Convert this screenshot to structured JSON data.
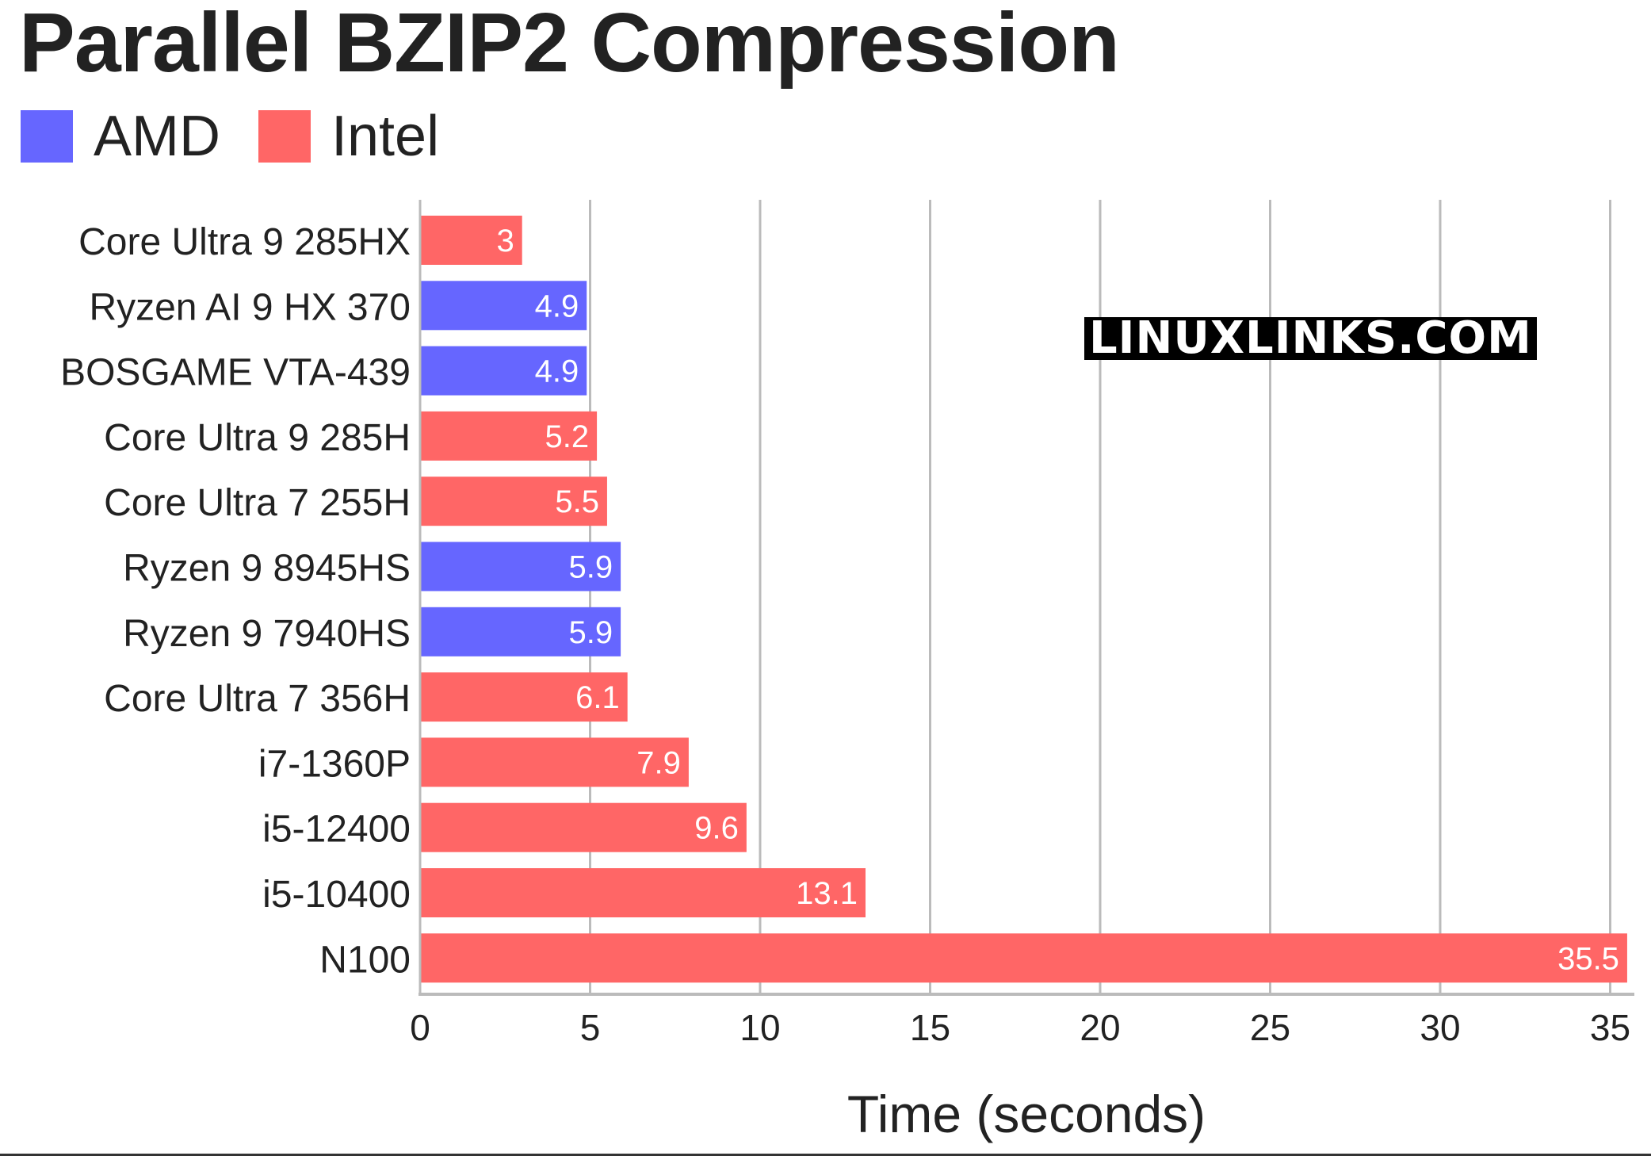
{
  "title": "Parallel BZIP2 Compression",
  "legend": [
    {
      "label": "AMD",
      "color": "#6666ff"
    },
    {
      "label": "Intel",
      "color": "#ff6666"
    }
  ],
  "watermark": "LINUXLINKS.COM",
  "chart_data": {
    "type": "bar",
    "orientation": "horizontal",
    "title": "Parallel BZIP2 Compression",
    "xlabel": "Time (seconds)",
    "ylabel": "",
    "xlim": [
      0,
      35.5
    ],
    "xticks": [
      0,
      5,
      10,
      15,
      20,
      25,
      30,
      35
    ],
    "grid": true,
    "legend_position": "top-left",
    "categories": [
      "Core Ultra 9 285HX",
      "Ryzen AI 9 HX 370",
      "BOSGAME VTA-439",
      "Core Ultra 9 285H",
      "Core Ultra 7 255H",
      "Ryzen 9 8945HS",
      "Ryzen 9 7940HS",
      "Core Ultra 7 356H",
      "i7-1360P",
      "i5-12400",
      "i5-10400",
      "N100"
    ],
    "values": [
      3,
      4.9,
      4.9,
      5.2,
      5.5,
      5.9,
      5.9,
      6.1,
      7.9,
      9.6,
      13.1,
      35.5
    ],
    "labels": [
      "3",
      "4.9",
      "4.9",
      "5.2",
      "5.5",
      "5.9",
      "5.9",
      "6.1",
      "7.9",
      "9.6",
      "13.1",
      "35.5"
    ],
    "vendor": [
      "Intel",
      "AMD",
      "AMD",
      "Intel",
      "Intel",
      "AMD",
      "AMD",
      "Intel",
      "Intel",
      "Intel",
      "Intel",
      "Intel"
    ],
    "colors": {
      "AMD": "#6666ff",
      "Intel": "#ff6666"
    }
  }
}
